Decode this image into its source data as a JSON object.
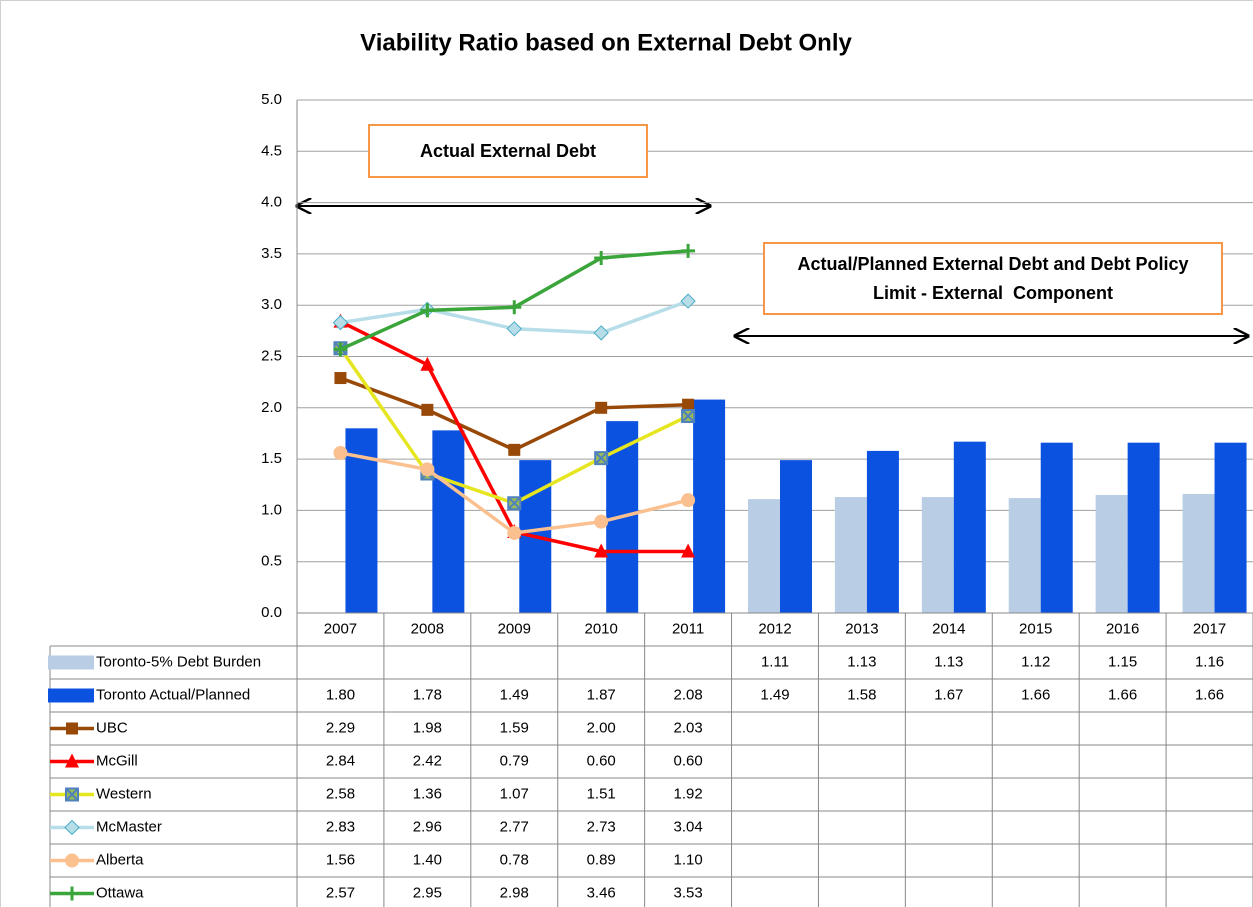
{
  "chart_data": {
    "type": "bar-line-table",
    "title": "Viability Ratio based on External Debt Only",
    "annotations": [
      "Actual External Debt",
      "Actual/Planned External Debt and Debt Policy Limit - External  Component"
    ],
    "categories": [
      "2007",
      "2008",
      "2009",
      "2010",
      "2011",
      "2012",
      "2013",
      "2014",
      "2015",
      "2016",
      "2017"
    ],
    "ylim": [
      0,
      5
    ],
    "yticks": [
      {
        "value": 0,
        "label": "0.0"
      },
      {
        "value": 0.5,
        "label": "0.5"
      },
      {
        "value": 1,
        "label": "1.0"
      },
      {
        "value": 1.5,
        "label": "1.5"
      },
      {
        "value": 2,
        "label": "2.0"
      },
      {
        "value": 2.5,
        "label": "2.5"
      },
      {
        "value": 3,
        "label": "3.0"
      },
      {
        "value": 3.5,
        "label": "3.5"
      },
      {
        "value": 4,
        "label": "4.0"
      },
      {
        "value": 4.5,
        "label": "4.5"
      },
      {
        "value": 5,
        "label": "5.0"
      }
    ],
    "grid": true,
    "series": [
      {
        "name": "Toronto-5% Debt Burden",
        "kind": "bar",
        "color": "#b9cde5",
        "values": [
          null,
          null,
          null,
          null,
          null,
          1.11,
          1.13,
          1.13,
          1.12,
          1.15,
          1.16
        ],
        "value_labels": [
          null,
          null,
          null,
          null,
          null,
          "1.11",
          "1.13",
          "1.13",
          "1.12",
          "1.15",
          "1.16"
        ]
      },
      {
        "name": "Toronto Actual/Planned",
        "kind": "bar",
        "color": "#0b52e0",
        "values": [
          1.8,
          1.78,
          1.49,
          1.87,
          2.08,
          1.49,
          1.58,
          1.67,
          1.66,
          1.66,
          1.66
        ],
        "value_labels": [
          "1.80",
          "1.78",
          "1.49",
          "1.87",
          "2.08",
          "1.49",
          "1.58",
          "1.67",
          "1.66",
          "1.66",
          "1.66"
        ]
      },
      {
        "name": "UBC",
        "kind": "line",
        "color": "#984807",
        "marker": "square",
        "values": [
          2.29,
          1.98,
          1.59,
          2.0,
          2.03,
          null,
          null,
          null,
          null,
          null,
          null
        ],
        "value_labels": [
          "2.29",
          "1.98",
          "1.59",
          "2.00",
          "2.03",
          null,
          null,
          null,
          null,
          null,
          null
        ]
      },
      {
        "name": "McGill",
        "kind": "line",
        "color": "#ff0000",
        "marker": "triangle",
        "values": [
          2.84,
          2.42,
          0.79,
          0.6,
          0.6,
          null,
          null,
          null,
          null,
          null,
          null
        ],
        "value_labels": [
          "2.84",
          "2.42",
          "0.79",
          "0.60",
          "0.60",
          null,
          null,
          null,
          null,
          null,
          null
        ]
      },
      {
        "name": "Western",
        "kind": "line",
        "color": "#e6e620",
        "marker": "xsquare",
        "values": [
          2.58,
          1.36,
          1.07,
          1.51,
          1.92,
          null,
          null,
          null,
          null,
          null,
          null
        ],
        "value_labels": [
          "2.58",
          "1.36",
          "1.07",
          "1.51",
          "1.92",
          null,
          null,
          null,
          null,
          null,
          null
        ]
      },
      {
        "name": "McMaster",
        "kind": "line",
        "color": "#b7dee8",
        "marker": "diamond",
        "values": [
          2.83,
          2.96,
          2.77,
          2.73,
          3.04,
          null,
          null,
          null,
          null,
          null,
          null
        ],
        "value_labels": [
          "2.83",
          "2.96",
          "2.77",
          "2.73",
          "3.04",
          null,
          null,
          null,
          null,
          null,
          null
        ]
      },
      {
        "name": "Alberta",
        "kind": "line",
        "color": "#fac090",
        "marker": "circle",
        "values": [
          1.56,
          1.4,
          0.78,
          0.89,
          1.1,
          null,
          null,
          null,
          null,
          null,
          null
        ],
        "value_labels": [
          "1.56",
          "1.40",
          "0.78",
          "0.89",
          "1.10",
          null,
          null,
          null,
          null,
          null,
          null
        ]
      },
      {
        "name": "Ottawa",
        "kind": "line",
        "color": "#3aa53a",
        "marker": "plus",
        "values": [
          2.57,
          2.95,
          2.98,
          3.46,
          3.53,
          null,
          null,
          null,
          null,
          null,
          null
        ],
        "value_labels": [
          "2.57",
          "2.95",
          "2.98",
          "3.46",
          "3.53",
          null,
          null,
          null,
          null,
          null,
          null
        ]
      }
    ]
  }
}
